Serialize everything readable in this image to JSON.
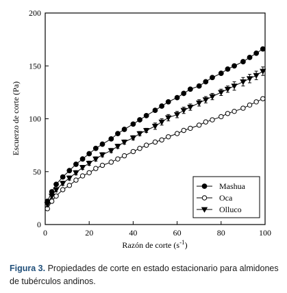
{
  "chart_data": {
    "type": "scatter",
    "xlabel": "Razón de corte (s",
    "xlabel_sup": "-1",
    "xlabel_close": ")",
    "ylabel": "Escuerzo de corte (Pa)",
    "xlim": [
      0,
      100
    ],
    "ylim": [
      0,
      200
    ],
    "xticks": [
      "0",
      "20",
      "40",
      "60",
      "80",
      "100"
    ],
    "yticks": [
      "0",
      "50",
      "100",
      "150",
      "200"
    ],
    "legend_position": "bottom-right",
    "series": [
      {
        "name": "Mashua",
        "marker": "filled-circle",
        "x": [
          1,
          3,
          5,
          8,
          11,
          14,
          17,
          20,
          23,
          26,
          30,
          33,
          36,
          40,
          43,
          46,
          50,
          53,
          56,
          60,
          63,
          66,
          70,
          73,
          76,
          80,
          83,
          86,
          90,
          93,
          96,
          99
        ],
        "y": [
          22,
          31,
          38,
          45,
          51,
          57,
          62,
          67,
          72,
          76,
          81,
          86,
          90,
          95,
          99,
          103,
          108,
          112,
          116,
          120,
          124,
          128,
          131,
          135,
          139,
          143,
          147,
          150,
          154,
          158,
          162,
          166
        ]
      },
      {
        "name": "Oca",
        "marker": "open-circle",
        "x": [
          1,
          3,
          5,
          8,
          11,
          14,
          17,
          20,
          23,
          26,
          30,
          33,
          36,
          40,
          43,
          46,
          50,
          53,
          56,
          60,
          63,
          66,
          70,
          73,
          76,
          80,
          83,
          86,
          90,
          93,
          96,
          99
        ],
        "y": [
          15,
          22,
          27,
          33,
          37,
          42,
          46,
          49,
          53,
          56,
          59,
          62,
          65,
          69,
          72,
          75,
          78,
          80,
          83,
          86,
          89,
          91,
          94,
          97,
          99,
          102,
          105,
          107,
          110,
          113,
          116,
          119
        ]
      },
      {
        "name": "Olluco",
        "marker": "filled-triangle-down",
        "x": [
          1,
          3,
          5,
          8,
          11,
          14,
          17,
          20,
          23,
          26,
          30,
          33,
          36,
          40,
          43,
          46,
          50,
          53,
          56,
          60,
          63,
          66,
          70,
          73,
          76,
          80,
          83,
          86,
          90,
          93,
          96,
          99
        ],
        "y": [
          19,
          27,
          33,
          39,
          44,
          49,
          54,
          58,
          62,
          66,
          70,
          74,
          78,
          82,
          86,
          89,
          93,
          97,
          101,
          104,
          108,
          111,
          115,
          118,
          121,
          125,
          128,
          131,
          135,
          138,
          141,
          145
        ],
        "error": [
          2,
          2,
          2,
          2,
          2,
          2,
          2,
          2,
          2,
          2,
          2,
          2,
          2,
          2,
          2,
          2,
          3,
          3,
          3,
          3,
          3,
          3,
          3,
          3,
          3,
          3,
          3,
          4,
          4,
          4,
          4,
          4
        ]
      }
    ]
  },
  "caption": {
    "label": "Figura 3.",
    "text": "Propiedades de corte en estado estacionario para almidones de tubérculos andinos."
  }
}
